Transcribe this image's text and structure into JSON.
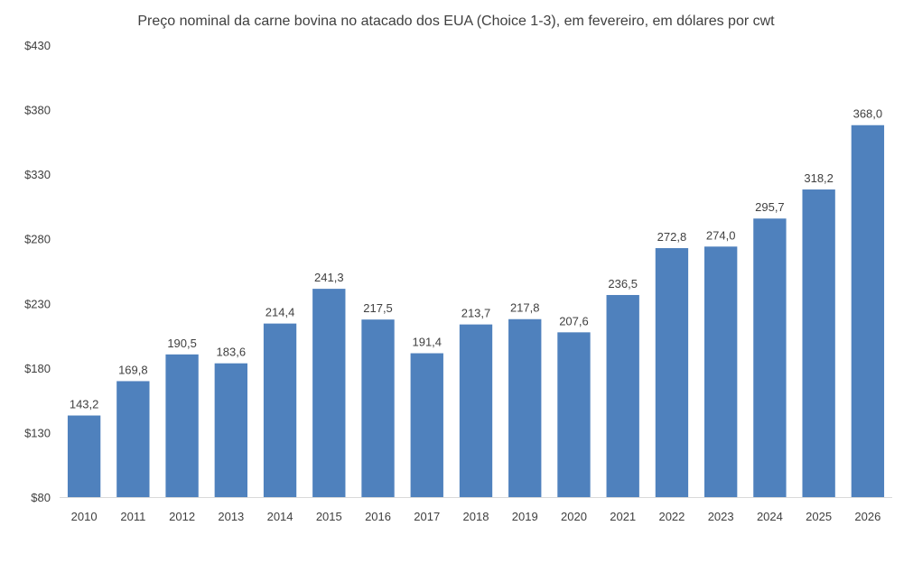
{
  "chart_data": {
    "type": "bar",
    "title": "Preço nominal da carne bovina no atacado dos EUA (Choice 1-3), em fevereiro, em dólares por cwt",
    "xlabel": "",
    "ylabel": "",
    "categories": [
      "2010",
      "2011",
      "2012",
      "2013",
      "2014",
      "2015",
      "2016",
      "2017",
      "2018",
      "2019",
      "2020",
      "2021",
      "2022",
      "2023",
      "2024",
      "2025",
      "2026"
    ],
    "values": [
      143.2,
      169.8,
      190.5,
      183.6,
      214.4,
      241.3,
      217.5,
      191.4,
      213.7,
      217.8,
      207.6,
      236.5,
      272.8,
      274.0,
      295.7,
      318.2,
      368.0
    ],
    "data_labels": [
      "143,2",
      "169,8",
      "190,5",
      "183,6",
      "214,4",
      "241,3",
      "217,5",
      "191,4",
      "213,7",
      "217,8",
      "207,6",
      "236,5",
      "272,8",
      "274,0",
      "295,7",
      "318,2",
      "368,0"
    ],
    "ylim": [
      80,
      430
    ],
    "yticks": [
      80,
      130,
      180,
      230,
      280,
      330,
      380,
      430
    ],
    "ytick_labels": [
      "$80",
      "$130",
      "$180",
      "$230",
      "$280",
      "$330",
      "$380",
      "$430"
    ],
    "grid": false,
    "legend": "none",
    "colors": {
      "bar": "#4f81bd",
      "axis": "#d9d9d9",
      "text": "#404040"
    }
  }
}
